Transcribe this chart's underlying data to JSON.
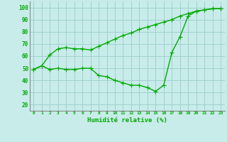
{
  "x": [
    0,
    1,
    2,
    3,
    4,
    5,
    6,
    7,
    8,
    9,
    10,
    11,
    12,
    13,
    14,
    15,
    16,
    17,
    18,
    19,
    20,
    21,
    22,
    23
  ],
  "line1": [
    49,
    52,
    61,
    66,
    67,
    66,
    66,
    65,
    68,
    71,
    74,
    77,
    79,
    82,
    84,
    86,
    88,
    90,
    93,
    95,
    97,
    98,
    99,
    99
  ],
  "line2": [
    49,
    52,
    49,
    50,
    49,
    49,
    50,
    50,
    44,
    43,
    40,
    38,
    36,
    36,
    34,
    31,
    36,
    63,
    76,
    93,
    97,
    98,
    99,
    99
  ],
  "xlabel": "Humidité relative (%)",
  "xlim": [
    -0.5,
    23.5
  ],
  "ylim": [
    15,
    105
  ],
  "yticks": [
    20,
    30,
    40,
    50,
    60,
    70,
    80,
    90,
    100
  ],
  "xticks": [
    0,
    1,
    2,
    3,
    4,
    5,
    6,
    7,
    8,
    9,
    10,
    11,
    12,
    13,
    14,
    15,
    16,
    17,
    18,
    19,
    20,
    21,
    22,
    23
  ],
  "line_color": "#00aa00",
  "bg_color": "#c8ecea",
  "grid_color": "#99cccc",
  "marker": "P",
  "marker_size": 2.5,
  "linewidth": 1.0
}
